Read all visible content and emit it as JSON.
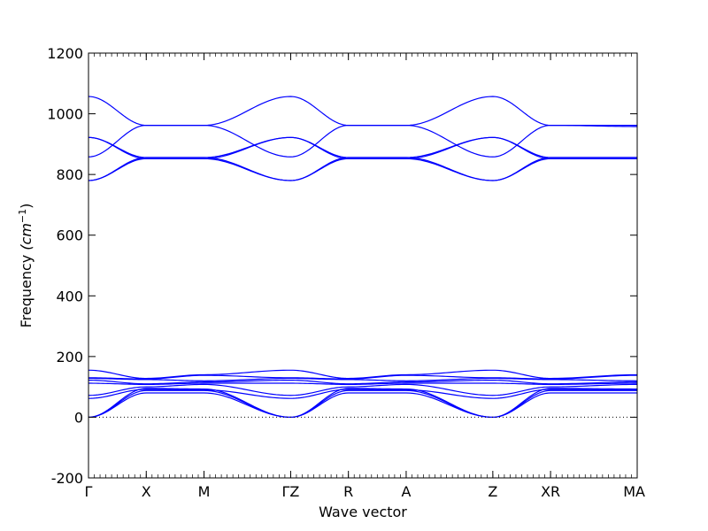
{
  "chart_data": {
    "type": "line",
    "title": "",
    "xlabel": "Wave vector",
    "ylabel": "Frequency",
    "ylabel_unit": "(cm",
    "ylabel_exp": "−1",
    "ylabel_close": ")",
    "ylim": [
      -200,
      1200
    ],
    "yticks": [
      -200,
      0,
      200,
      400,
      600,
      800,
      1000,
      1200
    ],
    "xlim": [
      0,
      9.5
    ],
    "high_symmetry_points": [
      {
        "label": "Γ",
        "x": 0.0
      },
      {
        "label": "X",
        "x": 1.0
      },
      {
        "label": "M",
        "x": 2.0
      },
      {
        "label": "ΓZ",
        "x": 3.5
      },
      {
        "label": "R",
        "x": 4.5
      },
      {
        "label": "A",
        "x": 5.5
      },
      {
        "label": "Z",
        "x": 7.0
      },
      {
        "label": "XR",
        "x": 8.0
      },
      {
        "label": "MA",
        "x": 9.5
      }
    ],
    "zero_line": true,
    "line_color": "#0000ff",
    "series": [
      {
        "x": [
          0,
          1,
          2,
          3.5,
          4.5,
          5.5,
          7,
          8,
          9.5
        ],
        "y": [
          0,
          80,
          80,
          0,
          80,
          80,
          0,
          80,
          80
        ]
      },
      {
        "x": [
          0,
          1,
          2,
          3.5,
          4.5,
          5.5,
          7,
          8,
          9.5
        ],
        "y": [
          0,
          88,
          88,
          0,
          88,
          88,
          0,
          88,
          88
        ]
      },
      {
        "x": [
          0,
          1,
          2,
          3.5,
          4.5,
          5.5,
          7,
          8,
          9.5
        ],
        "y": [
          0,
          95,
          93,
          0,
          95,
          93,
          0,
          95,
          93
        ]
      },
      {
        "x": [
          0,
          1,
          2,
          3.5,
          4.5,
          5.5,
          7,
          8,
          9.5
        ],
        "y": [
          62,
          92,
          90,
          62,
          92,
          90,
          62,
          92,
          90
        ]
      },
      {
        "x": [
          0,
          1,
          2,
          3.5,
          4.5,
          5.5,
          7,
          8,
          9.5
        ],
        "y": [
          72,
          100,
          108,
          72,
          100,
          108,
          72,
          100,
          108
        ]
      },
      {
        "x": [
          0,
          1,
          2,
          3.5,
          4.5,
          5.5,
          7,
          8,
          9.5
        ],
        "y": [
          112,
          108,
          112,
          112,
          108,
          112,
          112,
          108,
          112
        ]
      },
      {
        "x": [
          0,
          1,
          2,
          3.5,
          4.5,
          5.5,
          7,
          8,
          9.5
        ],
        "y": [
          122,
          110,
          116,
          122,
          110,
          116,
          122,
          110,
          116
        ]
      },
      {
        "x": [
          0,
          1,
          2,
          3.5,
          4.5,
          5.5,
          7,
          8,
          9.5
        ],
        "y": [
          128,
          124,
          120,
          128,
          124,
          120,
          128,
          124,
          120
        ]
      },
      {
        "x": [
          0,
          1,
          2,
          3.5,
          4.5,
          5.5,
          7,
          8,
          9.5
        ],
        "y": [
          130,
          126,
          138,
          130,
          126,
          138,
          130,
          126,
          138
        ]
      },
      {
        "x": [
          0,
          1,
          2,
          3.5,
          4.5,
          5.5,
          7,
          8,
          9.5
        ],
        "y": [
          155,
          128,
          140,
          155,
          128,
          140,
          155,
          128,
          140
        ]
      },
      {
        "x": [
          0,
          1,
          2,
          3.5,
          4.5,
          5.5,
          7,
          8,
          9.5
        ],
        "y": [
          780,
          852,
          852,
          780,
          852,
          852,
          780,
          852,
          852
        ]
      },
      {
        "x": [
          0,
          1,
          2,
          3.5,
          4.5,
          5.5,
          7,
          8,
          9.5
        ],
        "y": [
          780,
          856,
          856,
          780,
          856,
          856,
          780,
          856,
          856
        ]
      },
      {
        "x": [
          0,
          1,
          2,
          3.5,
          4.5,
          5.5,
          7,
          8,
          9.5
        ],
        "y": [
          922,
          852,
          852,
          922,
          852,
          852,
          922,
          852,
          852
        ]
      },
      {
        "x": [
          0,
          1,
          2,
          3.5,
          4.5,
          5.5,
          7,
          8,
          9.5
        ],
        "y": [
          922,
          856,
          856,
          922,
          856,
          856,
          922,
          856,
          856
        ]
      },
      {
        "x": [
          0,
          1,
          2,
          3.5,
          4.5,
          5.5,
          7,
          8,
          9.5
        ],
        "y": [
          858,
          962,
          962,
          858,
          962,
          962,
          858,
          962,
          962
        ]
      },
      {
        "x": [
          0,
          1,
          2,
          3.5,
          4.5,
          5.5,
          7,
          8,
          9.5
        ],
        "y": [
          1057,
          962,
          962,
          1057,
          962,
          962,
          1057,
          962,
          958
        ]
      }
    ]
  }
}
